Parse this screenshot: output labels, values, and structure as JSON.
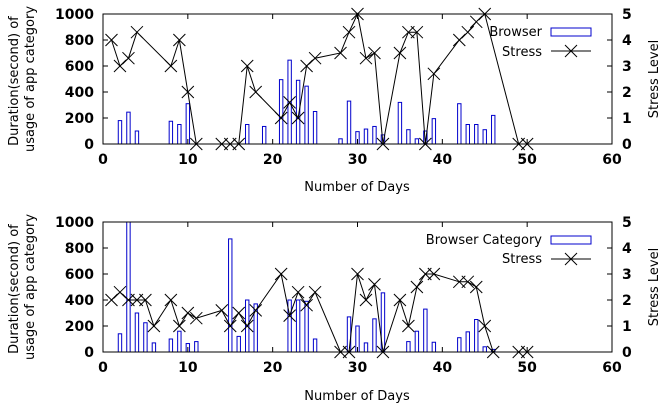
{
  "chart_data": [
    {
      "type": "bar",
      "title": "",
      "xlabel": "Number of Days",
      "ylabel": [
        "Duration(second) of",
        "usage of app category"
      ],
      "y2label": "Stress Level",
      "xlim": [
        0,
        60
      ],
      "ylim": [
        0,
        1000
      ],
      "y2lim": [
        0,
        5
      ],
      "xticks": [
        "0",
        "10",
        "20",
        "30",
        "40",
        "50",
        "60"
      ],
      "yticks": [
        "0",
        "200",
        "400",
        "600",
        "800",
        "1000"
      ],
      "y2ticks": [
        "0",
        "1",
        "2",
        "3",
        "4",
        "5"
      ],
      "grid": false,
      "legend_position": "top-right",
      "colors": {
        "bars": "#0000cc",
        "stress": "#000000"
      },
      "bar_series": {
        "name": "Browser",
        "x": [
          2,
          3,
          4,
          8,
          9,
          10,
          17,
          19,
          21,
          22,
          23,
          24,
          25,
          28,
          29,
          30,
          31,
          32,
          33,
          35,
          36,
          37,
          38,
          39,
          42,
          43,
          44,
          45,
          46
        ],
        "values": [
          180,
          245,
          100,
          175,
          150,
          310,
          150,
          135,
          495,
          645,
          490,
          445,
          250,
          40,
          330,
          95,
          115,
          135,
          70,
          320,
          110,
          40,
          100,
          195,
          310,
          150,
          150,
          110,
          220
        ]
      },
      "line_series": {
        "name": "Stress",
        "x": [
          1,
          2,
          3,
          4,
          8,
          9,
          10,
          11,
          14,
          15,
          16,
          17,
          18,
          21,
          22,
          23,
          24,
          25,
          28,
          29,
          30,
          31,
          32,
          33,
          35,
          36,
          37,
          38,
          39,
          42,
          43,
          44,
          45,
          49,
          50
        ],
        "values": [
          4,
          3,
          3.3,
          4.3,
          3,
          4,
          2,
          0,
          0,
          0,
          0,
          3,
          2,
          1,
          1.6,
          1,
          3,
          3.3,
          3.5,
          4.3,
          5,
          3.3,
          3.5,
          0,
          3.5,
          4.3,
          4.3,
          0,
          2.7,
          4,
          4.3,
          4.7,
          5,
          0,
          0
        ]
      }
    },
    {
      "type": "bar",
      "title": "",
      "xlabel": "Number of Days",
      "ylabel": [
        "Duration(second) of",
        "usage of app category"
      ],
      "y2label": "Stress Level",
      "xlim": [
        0,
        60
      ],
      "ylim": [
        0,
        1000
      ],
      "y2lim": [
        0,
        5
      ],
      "xticks": [
        "0",
        "10",
        "20",
        "30",
        "40",
        "50",
        "60"
      ],
      "yticks": [
        "0",
        "200",
        "400",
        "600",
        "800",
        "1000"
      ],
      "y2ticks": [
        "0",
        "1",
        "2",
        "3",
        "4",
        "5"
      ],
      "grid": false,
      "legend_position": "top-right",
      "colors": {
        "bars": "#0000cc",
        "stress": "#000000"
      },
      "bar_series": {
        "name": "Browser Category",
        "x": [
          2,
          3,
          4,
          5,
          6,
          8,
          9,
          10,
          11,
          15,
          16,
          17,
          18,
          22,
          23,
          24,
          25,
          29,
          30,
          31,
          32,
          33,
          36,
          37,
          38,
          39,
          42,
          43,
          44,
          45,
          46
        ],
        "values": [
          140,
          1000,
          300,
          225,
          70,
          100,
          160,
          65,
          80,
          870,
          120,
          400,
          370,
          400,
          400,
          390,
          100,
          270,
          200,
          70,
          255,
          455,
          80,
          160,
          330,
          75,
          110,
          155,
          250,
          40,
          20
        ]
      },
      "line_series": {
        "name": "Stress",
        "x": [
          1,
          2,
          3,
          4,
          5,
          6,
          8,
          9,
          10,
          11,
          14,
          15,
          16,
          17,
          18,
          21,
          22,
          23,
          24,
          25,
          28,
          29,
          30,
          31,
          32,
          33,
          35,
          36,
          37,
          38,
          39,
          42,
          43,
          44,
          45,
          46,
          49,
          50
        ],
        "values": [
          2,
          2.3,
          2,
          2,
          2,
          1,
          2,
          1,
          1.5,
          1.3,
          1.6,
          1,
          1.5,
          1,
          1.6,
          3,
          1.4,
          2.3,
          1.8,
          2.3,
          0,
          0,
          3,
          2,
          2.6,
          0,
          2,
          1,
          2.5,
          3,
          3,
          2.7,
          2.7,
          2.5,
          1,
          0,
          0,
          0
        ]
      }
    }
  ]
}
